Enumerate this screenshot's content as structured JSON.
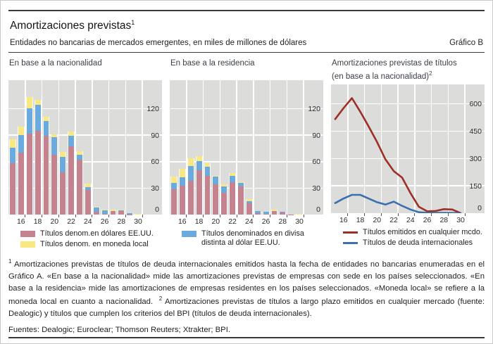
{
  "figure": {
    "title": "Amortizaciones previstas",
    "title_superscript": "1",
    "subtitle": "Entidades no bancarias de mercados emergentes, en miles de millones de dólares",
    "graph_label": "Gráfico B"
  },
  "colors": {
    "bar_usd_pink": "#c5838f",
    "bar_other_currency_blue": "#6aaade",
    "bar_local_currency_yellow": "#f9e77f",
    "line_any_market_red": "#9d2f27",
    "line_international_blue": "#3a70ae",
    "plot_background": "#dcdcdb",
    "gridline": "#ffffff",
    "rule": "#3a3a3a"
  },
  "chart_data": [
    {
      "type": "bar",
      "stacked": true,
      "title": "En base a la nacionalidad",
      "categories": [
        2015,
        2016,
        2017,
        2018,
        2019,
        2020,
        2021,
        2022,
        2023,
        2024,
        2025,
        2026,
        2027,
        2028,
        2029,
        2030
      ],
      "xtick_labels": [
        "16",
        "18",
        "20",
        "22",
        "24",
        "26",
        "28",
        "30"
      ],
      "yticks": [
        0,
        30,
        60,
        90,
        120
      ],
      "ylim": [
        0,
        152
      ],
      "grid": true,
      "series": [
        {
          "name": "Títulos denom.en dólares EE.UU.",
          "color": "#c5838f",
          "values": [
            58,
            70,
            92,
            95,
            89,
            68,
            48,
            77,
            62,
            28,
            3,
            1,
            4,
            4,
            0.5,
            0
          ]
        },
        {
          "name": "Títulos denominados en divisa distinta al dólar EE.UU.",
          "color": "#6aaade",
          "values": [
            18,
            20,
            28,
            29,
            17,
            20,
            17,
            12,
            6,
            3,
            5,
            4,
            0.5,
            1,
            1,
            0
          ]
        },
        {
          "name": "Títulos denom. en moneda local",
          "color": "#f9e77f",
          "values": [
            9,
            10,
            13,
            6,
            5,
            3,
            6,
            5,
            4,
            4,
            1,
            0.5,
            1.5,
            1,
            0,
            1
          ]
        }
      ]
    },
    {
      "type": "bar",
      "stacked": true,
      "title": "En base a la residencia",
      "categories": [
        2015,
        2016,
        2017,
        2018,
        2019,
        2020,
        2021,
        2022,
        2023,
        2024,
        2025,
        2026,
        2027,
        2028,
        2029,
        2030
      ],
      "xtick_labels": [
        "16",
        "18",
        "20",
        "22",
        "24",
        "26",
        "28",
        "30"
      ],
      "yticks": [
        0,
        30,
        60,
        90,
        120
      ],
      "ylim": [
        0,
        152
      ],
      "grid": true,
      "series": [
        {
          "name": "Títulos denom.en dólares EE.UU.",
          "color": "#c5838f",
          "values": [
            29,
            33,
            38,
            50,
            44,
            34,
            25,
            37,
            32,
            13,
            2,
            1,
            4,
            2.5,
            0.3,
            0
          ]
        },
        {
          "name": "Títulos denominados en divisa distinta al dólar EE.UU.",
          "color": "#6aaade",
          "values": [
            7,
            9,
            17,
            11,
            10,
            9,
            7,
            7,
            4,
            2,
            2,
            2,
            0.5,
            0.5,
            0,
            0
          ]
        },
        {
          "name": "Títulos denom. en moneda local",
          "color": "#f9e77f",
          "values": [
            7,
            10,
            9,
            5,
            4,
            1,
            2,
            3,
            1,
            3,
            0,
            0.5,
            1,
            0,
            0,
            1
          ]
        }
      ]
    },
    {
      "type": "line",
      "title_line1": "Amortizaciones previstas de títulos",
      "title_line2": "(en base a la nacionalidad)",
      "title_superscript": "2",
      "categories": [
        2015,
        2016,
        2017,
        2018,
        2019,
        2020,
        2021,
        2022,
        2023,
        2024,
        2025,
        2026,
        2027,
        2028,
        2029,
        2030
      ],
      "xtick_labels": [
        "16",
        "18",
        "20",
        "22",
        "24",
        "26",
        "28",
        "30"
      ],
      "yticks": [
        0,
        150,
        300,
        450,
        600
      ],
      "ylim": [
        0,
        705
      ],
      "grid": true,
      "series": [
        {
          "name": "Títulos emitidos en cualquier mcdo.",
          "color": "#9d2f27",
          "values": [
            515,
            575,
            630,
            555,
            475,
            390,
            295,
            230,
            195,
            110,
            35,
            10,
            12,
            22,
            20,
            0
          ]
        },
        {
          "name": "Títulos de deuda internacionales",
          "color": "#3a70ae",
          "values": [
            55,
            80,
            100,
            100,
            80,
            60,
            47,
            63,
            40,
            20,
            5,
            2,
            2,
            2,
            1,
            0
          ]
        }
      ]
    }
  ],
  "legends": {
    "panel1": [
      {
        "swatch": "#c5838f",
        "label": "Títulos denom.en dólares EE.UU."
      },
      {
        "swatch": "#f9e77f",
        "label": "Títulos denom. en moneda local"
      }
    ],
    "panel2": [
      {
        "swatch": "#6aaade",
        "label_line1": "Títulos denominados en divisa",
        "label_line2": "distinta al dólar EE.UU."
      }
    ],
    "panel3": [
      {
        "swatch": "#9d2f27",
        "label": "Títulos emitidos en cualquier mcdo."
      },
      {
        "swatch": "#3a70ae",
        "label": "Títulos de deuda internacionales"
      }
    ]
  },
  "footnotes": {
    "fn1_marker": "1",
    "fn1_text": "Amortizaciones previstas de títulos de deuda internacionales emitidos hasta la fecha de entidades no bancarias enumeradas en el Gráfico A. «En base a la nacionalidad» mide las amortizaciones previstas de empresas con sede en los países seleccionados.  «En base a la residencia» mide las amortizaciones de empresas residentes en los países seleccionados. «Moneda local» se refiere a la moneda local en cuanto a nacionalidad.",
    "fn2_marker": "2",
    "fn2_text": "Amortizaciones previstas de títulos a largo plazo emitidos en cualquier mercado (fuente: Dealogic) y títulos que cumplen los criterios del BPI (títulos de deuda internacionales)."
  },
  "sources": "Fuentes: Dealogic; Euroclear; Thomson Reuters; Xtrakter; BPI."
}
